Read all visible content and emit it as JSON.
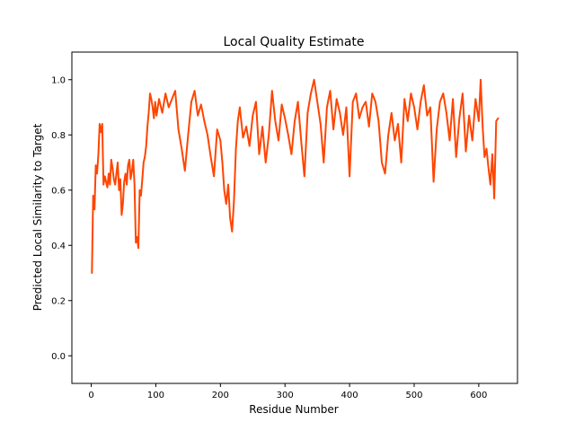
{
  "chart_data": {
    "type": "line",
    "title": "Local Quality Estimate",
    "xlabel": "Residue Number",
    "ylabel": "Predicted Local Similarity to Target",
    "xlim": [
      -30,
      660
    ],
    "ylim": [
      -0.1,
      1.1
    ],
    "xticks": [
      0,
      100,
      200,
      300,
      400,
      500,
      600
    ],
    "yticks": [
      0.0,
      0.2,
      0.4,
      0.6,
      0.8,
      1.0
    ],
    "xtick_labels": [
      "0",
      "100",
      "200",
      "300",
      "400",
      "500",
      "600"
    ],
    "ytick_labels": [
      "0.0",
      "0.2",
      "0.4",
      "0.6",
      "0.8",
      "1.0"
    ],
    "grid": false,
    "series": [
      {
        "color": "#ff4500",
        "x": [
          1,
          3,
          5,
          7,
          9,
          11,
          13,
          15,
          17,
          19,
          21,
          23,
          25,
          27,
          29,
          31,
          33,
          35,
          37,
          39,
          41,
          43,
          45,
          47,
          49,
          51,
          53,
          55,
          57,
          59,
          61,
          63,
          65,
          67,
          69,
          71,
          73,
          75,
          77,
          79,
          81,
          83,
          85,
          87,
          89,
          91,
          93,
          95,
          97,
          99,
          101,
          105,
          110,
          115,
          120,
          125,
          130,
          135,
          140,
          145,
          150,
          155,
          160,
          165,
          170,
          175,
          180,
          185,
          190,
          195,
          200,
          203,
          206,
          209,
          212,
          215,
          218,
          221,
          224,
          227,
          230,
          235,
          240,
          245,
          250,
          255,
          260,
          265,
          270,
          275,
          280,
          285,
          290,
          295,
          300,
          305,
          310,
          315,
          320,
          325,
          330,
          335,
          340,
          345,
          350,
          355,
          360,
          365,
          370,
          375,
          380,
          385,
          390,
          395,
          400,
          405,
          410,
          415,
          420,
          425,
          430,
          435,
          440,
          445,
          450,
          455,
          460,
          465,
          470,
          475,
          480,
          485,
          490,
          495,
          500,
          505,
          510,
          515,
          520,
          525,
          530,
          535,
          540,
          545,
          550,
          555,
          560,
          565,
          570,
          575,
          580,
          585,
          590,
          595,
          600,
          603,
          606,
          609,
          612,
          615,
          618,
          621,
          624,
          627,
          630
        ],
        "y": [
          0.3,
          0.58,
          0.53,
          0.69,
          0.66,
          0.73,
          0.84,
          0.81,
          0.84,
          0.62,
          0.65,
          0.63,
          0.61,
          0.66,
          0.62,
          0.71,
          0.68,
          0.64,
          0.62,
          0.66,
          0.7,
          0.6,
          0.64,
          0.51,
          0.55,
          0.63,
          0.66,
          0.62,
          0.69,
          0.71,
          0.64,
          0.67,
          0.71,
          0.62,
          0.41,
          0.43,
          0.39,
          0.6,
          0.58,
          0.64,
          0.7,
          0.72,
          0.76,
          0.83,
          0.88,
          0.95,
          0.93,
          0.9,
          0.86,
          0.92,
          0.87,
          0.93,
          0.88,
          0.95,
          0.9,
          0.93,
          0.96,
          0.82,
          0.75,
          0.67,
          0.8,
          0.92,
          0.96,
          0.87,
          0.91,
          0.85,
          0.8,
          0.72,
          0.65,
          0.82,
          0.78,
          0.7,
          0.6,
          0.55,
          0.62,
          0.5,
          0.45,
          0.56,
          0.75,
          0.85,
          0.9,
          0.79,
          0.83,
          0.76,
          0.87,
          0.92,
          0.73,
          0.83,
          0.7,
          0.8,
          0.96,
          0.85,
          0.78,
          0.91,
          0.86,
          0.8,
          0.73,
          0.85,
          0.92,
          0.78,
          0.65,
          0.88,
          0.95,
          1.0,
          0.92,
          0.84,
          0.7,
          0.9,
          0.96,
          0.82,
          0.93,
          0.88,
          0.8,
          0.9,
          0.65,
          0.92,
          0.95,
          0.86,
          0.9,
          0.92,
          0.83,
          0.95,
          0.92,
          0.85,
          0.7,
          0.66,
          0.8,
          0.88,
          0.78,
          0.84,
          0.7,
          0.93,
          0.85,
          0.95,
          0.9,
          0.82,
          0.92,
          0.98,
          0.87,
          0.9,
          0.63,
          0.82,
          0.92,
          0.95,
          0.88,
          0.78,
          0.93,
          0.72,
          0.86,
          0.95,
          0.74,
          0.87,
          0.78,
          0.93,
          0.85,
          1.0,
          0.83,
          0.72,
          0.75,
          0.68,
          0.62,
          0.73,
          0.57,
          0.85,
          0.86
        ]
      }
    ]
  }
}
